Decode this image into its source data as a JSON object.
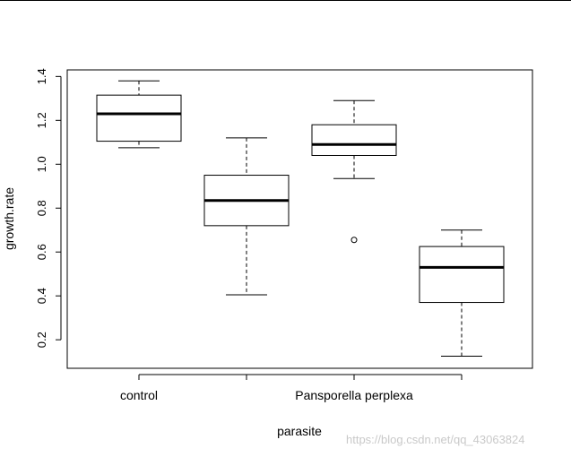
{
  "chart_data": {
    "type": "boxplot",
    "xlabel": "parasite",
    "ylabel": "growth.rate",
    "ylim": [
      0.07,
      1.43
    ],
    "yticks": [
      0.2,
      0.4,
      0.6,
      0.8,
      1.0,
      1.2,
      1.4
    ],
    "ytick_labels": [
      "0.2",
      "0.4",
      "0.6",
      "0.8",
      "1.0",
      "1.2",
      "1.4"
    ],
    "categories": [
      "control",
      "",
      "Pansporella perplexa",
      ""
    ],
    "boxes": [
      {
        "min": 1.075,
        "q1": 1.105,
        "median": 1.23,
        "q3": 1.315,
        "max": 1.38,
        "outliers": []
      },
      {
        "min": 0.405,
        "q1": 0.72,
        "median": 0.835,
        "q3": 0.95,
        "max": 1.12,
        "outliers": []
      },
      {
        "min": 0.935,
        "q1": 1.04,
        "median": 1.09,
        "q3": 1.18,
        "max": 1.29,
        "outliers": [
          0.655
        ]
      },
      {
        "min": 0.125,
        "q1": 0.37,
        "median": 0.53,
        "q3": 0.625,
        "max": 0.7,
        "outliers": []
      }
    ],
    "grid": false,
    "legend": "none"
  },
  "watermark": "https://blog.csdn.net/qq_43063824"
}
